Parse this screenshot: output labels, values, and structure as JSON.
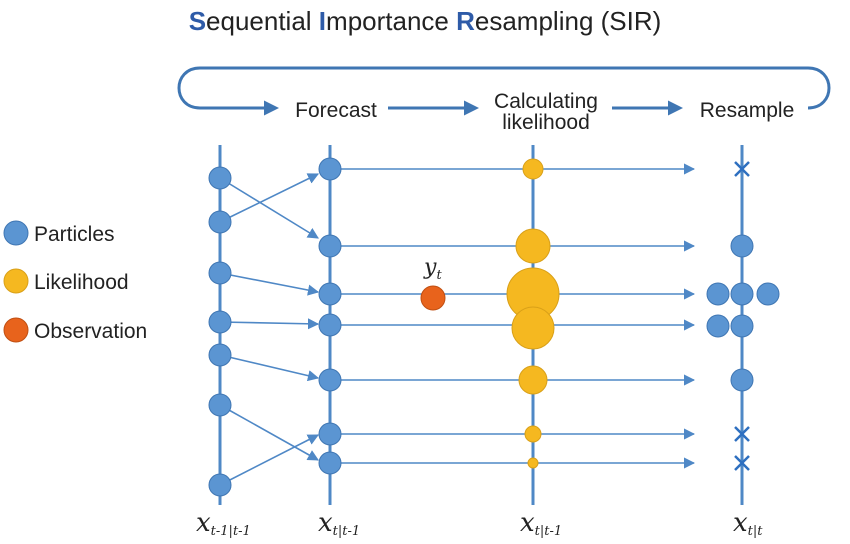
{
  "title": {
    "words": [
      {
        "first": "S",
        "rest": "equential "
      },
      {
        "first": "I",
        "rest": "mportance "
      },
      {
        "first": "R",
        "rest": "esampling (SIR)"
      }
    ]
  },
  "steps": {
    "forecast": "Forecast",
    "calc_line1": "Calculating",
    "calc_line2": "likelihood",
    "resample": "Resample"
  },
  "legend": {
    "particles": "Particles",
    "likelihood": "Likelihood",
    "observation": "Observation"
  },
  "observation_label": {
    "main": "y",
    "sub": "t"
  },
  "axes": [
    {
      "main": "x",
      "sub": "t-1|t-1"
    },
    {
      "main": "x",
      "sub": "t|t-1"
    },
    {
      "main": "x",
      "sub": "t|t-1"
    },
    {
      "main": "x",
      "sub": "t|t"
    }
  ],
  "colors": {
    "blue": "#5b95d2",
    "blue_stroke": "#3f76b3",
    "line": "#4f88c6",
    "yellow": "#f5b820",
    "yellow_stroke": "#d9a018",
    "orange": "#e8631c",
    "orange_stroke": "#c04f12",
    "accent": "#2e5ba8"
  },
  "particles": {
    "prior_count": 7,
    "forecast_count": 7,
    "likelihood_weights": [
      0.35,
      0.65,
      1.0,
      0.88,
      0.6,
      0.3,
      0.18
    ],
    "resample_counts": [
      0,
      1,
      3,
      2,
      1,
      0,
      0
    ]
  }
}
